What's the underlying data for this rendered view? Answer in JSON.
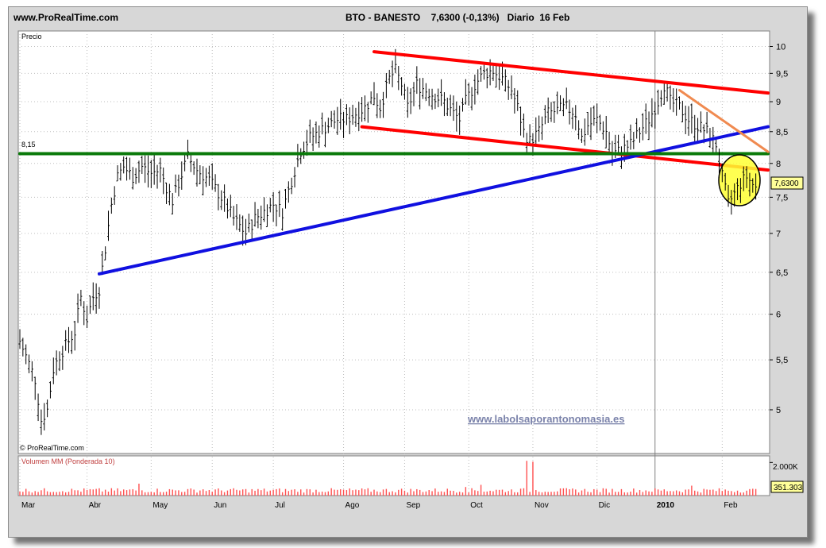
{
  "header": {
    "site": "www.ProRealTime.com",
    "instrument": "BTO - BANESTO",
    "price_change": "7,6300 (-0,13%)",
    "period": "Diario",
    "date": "16 Feb"
  },
  "price_panel": {
    "label": "Precio",
    "copyright": "© ProRealTime.com",
    "watermark": "www.labolsaporantonomasia.es",
    "level_label": "8,15",
    "last_price_tag": "7,6300"
  },
  "volume_panel": {
    "label": "Volumen MM (Ponderada 10)",
    "tick_label": "2.000K",
    "last_value_tag": "351.303"
  },
  "colors": {
    "channel": "#ff0000",
    "support_trend": "#1010e0",
    "horizontal_level": "#0a7a0a",
    "short_trend": "#f08a50",
    "highlight": "#ffff33",
    "candles": "#000000",
    "volume_bars": "#ff5050"
  },
  "chart_data": {
    "type": "ohlc-bar",
    "title": "BTO - BANESTO",
    "ylabel": "Precio",
    "scale": "log",
    "ylim": [
      4.6,
      10.3
    ],
    "yticks": [
      "10",
      "9,5",
      "9",
      "8,5",
      "8",
      "7,5",
      "7",
      "6,5",
      "6",
      "5,5",
      "5"
    ],
    "ytick_values": [
      10,
      9.5,
      9,
      8.5,
      8,
      7.5,
      7,
      6.5,
      6,
      5.5,
      5
    ],
    "x_labels": [
      "Mar",
      "Abr",
      "May",
      "Jun",
      "Jul",
      "Ago",
      "Sep",
      "Oct",
      "Nov",
      "Dic",
      "2010",
      "Feb"
    ],
    "x_label_day": [
      0,
      22,
      43,
      63,
      83,
      106,
      126,
      147,
      168,
      189,
      208,
      230
    ],
    "total_days": 245,
    "close_series": [
      {
        "d": 0,
        "v": 5.7
      },
      {
        "d": 5,
        "v": 5.3
      },
      {
        "d": 7,
        "v": 4.9
      },
      {
        "d": 9,
        "v": 5.0
      },
      {
        "d": 11,
        "v": 5.4
      },
      {
        "d": 13,
        "v": 5.55
      },
      {
        "d": 16,
        "v": 5.7
      },
      {
        "d": 18,
        "v": 5.8
      },
      {
        "d": 20,
        "v": 6.2
      },
      {
        "d": 22,
        "v": 5.95
      },
      {
        "d": 24,
        "v": 6.2
      },
      {
        "d": 26,
        "v": 6.3
      },
      {
        "d": 28,
        "v": 6.8
      },
      {
        "d": 30,
        "v": 7.4
      },
      {
        "d": 32,
        "v": 7.8
      },
      {
        "d": 34,
        "v": 7.95
      },
      {
        "d": 37,
        "v": 7.8
      },
      {
        "d": 40,
        "v": 7.95
      },
      {
        "d": 43,
        "v": 7.85
      },
      {
        "d": 46,
        "v": 7.9
      },
      {
        "d": 48,
        "v": 7.65
      },
      {
        "d": 50,
        "v": 7.45
      },
      {
        "d": 52,
        "v": 7.7
      },
      {
        "d": 55,
        "v": 8.1
      },
      {
        "d": 58,
        "v": 7.9
      },
      {
        "d": 62,
        "v": 7.75
      },
      {
        "d": 66,
        "v": 7.5
      },
      {
        "d": 70,
        "v": 7.2
      },
      {
        "d": 74,
        "v": 7.0
      },
      {
        "d": 77,
        "v": 7.2
      },
      {
        "d": 80,
        "v": 7.3
      },
      {
        "d": 83,
        "v": 7.4
      },
      {
        "d": 86,
        "v": 7.3
      },
      {
        "d": 88,
        "v": 7.6
      },
      {
        "d": 90,
        "v": 7.9
      },
      {
        "d": 92,
        "v": 8.2
      },
      {
        "d": 95,
        "v": 8.4
      },
      {
        "d": 98,
        "v": 8.5
      },
      {
        "d": 101,
        "v": 8.6
      },
      {
        "d": 104,
        "v": 8.7
      },
      {
        "d": 107,
        "v": 8.7
      },
      {
        "d": 110,
        "v": 8.8
      },
      {
        "d": 113,
        "v": 8.9
      },
      {
        "d": 116,
        "v": 9.1
      },
      {
        "d": 118,
        "v": 8.9
      },
      {
        "d": 121,
        "v": 9.4
      },
      {
        "d": 123,
        "v": 9.55
      },
      {
        "d": 125,
        "v": 9.3
      },
      {
        "d": 127,
        "v": 8.9
      },
      {
        "d": 130,
        "v": 9.3
      },
      {
        "d": 133,
        "v": 9.2
      },
      {
        "d": 136,
        "v": 9.1
      },
      {
        "d": 139,
        "v": 9.0
      },
      {
        "d": 142,
        "v": 8.8
      },
      {
        "d": 144,
        "v": 8.7
      },
      {
        "d": 146,
        "v": 9.0
      },
      {
        "d": 149,
        "v": 9.3
      },
      {
        "d": 152,
        "v": 9.5
      },
      {
        "d": 155,
        "v": 9.55
      },
      {
        "d": 158,
        "v": 9.4
      },
      {
        "d": 161,
        "v": 9.2
      },
      {
        "d": 163,
        "v": 8.9
      },
      {
        "d": 165,
        "v": 8.5
      },
      {
        "d": 167,
        "v": 8.35
      },
      {
        "d": 170,
        "v": 8.5
      },
      {
        "d": 173,
        "v": 8.8
      },
      {
        "d": 176,
        "v": 8.85
      },
      {
        "d": 179,
        "v": 8.9
      },
      {
        "d": 182,
        "v": 8.8
      },
      {
        "d": 184,
        "v": 8.4
      },
      {
        "d": 186,
        "v": 8.6
      },
      {
        "d": 189,
        "v": 8.7
      },
      {
        "d": 192,
        "v": 8.5
      },
      {
        "d": 194,
        "v": 8.15
      },
      {
        "d": 197,
        "v": 8.2
      },
      {
        "d": 200,
        "v": 8.3
      },
      {
        "d": 203,
        "v": 8.5
      },
      {
        "d": 206,
        "v": 8.7
      },
      {
        "d": 209,
        "v": 9.0
      },
      {
        "d": 211,
        "v": 9.3
      },
      {
        "d": 213,
        "v": 9.0
      },
      {
        "d": 216,
        "v": 8.9
      },
      {
        "d": 219,
        "v": 8.7
      },
      {
        "d": 222,
        "v": 8.6
      },
      {
        "d": 225,
        "v": 8.5
      },
      {
        "d": 228,
        "v": 8.3
      },
      {
        "d": 230,
        "v": 7.8
      },
      {
        "d": 232,
        "v": 7.4
      },
      {
        "d": 234,
        "v": 7.55
      },
      {
        "d": 236,
        "v": 7.7
      },
      {
        "d": 238,
        "v": 7.8
      },
      {
        "d": 241,
        "v": 7.63
      }
    ],
    "trendlines": [
      {
        "name": "",
        "color": "#ff0000",
        "from": {
          "d": 116,
          "v": 9.9
        },
        "to": {
          "d": 245,
          "v": 9.15
        }
      },
      {
        "name": "",
        "color": "#ff0000",
        "from": {
          "d": 112,
          "v": 8.58
        },
        "to": {
          "d": 245,
          "v": 7.9
        }
      },
      {
        "name": "",
        "color": "#1010e0",
        "from": {
          "d": 26,
          "v": 6.48
        },
        "to": {
          "d": 245,
          "v": 8.58
        }
      },
      {
        "name": "",
        "color": "#0a7a0a",
        "from": {
          "d": 0,
          "v": 8.15
        },
        "to": {
          "d": 245,
          "v": 8.15
        }
      },
      {
        "name": "",
        "color": "#f08a50",
        "from": {
          "d": 216,
          "v": 9.2
        },
        "to": {
          "d": 245,
          "v": 8.18
        }
      }
    ],
    "volume": {
      "ylim": [
        0,
        2400
      ],
      "ytick": 2000,
      "bars": [
        {
          "d": 166,
          "v": 2100
        },
        {
          "d": 168,
          "v": 2050
        },
        {
          "d": 39,
          "v": 720
        },
        {
          "d": 151,
          "v": 650
        },
        {
          "d": 220,
          "v": 600
        },
        {
          "d": 146,
          "v": 520
        },
        {
          "d": 60,
          "v": 380
        },
        {
          "d": 110,
          "v": 360
        }
      ],
      "base_level": 300,
      "last": 351.303
    }
  }
}
